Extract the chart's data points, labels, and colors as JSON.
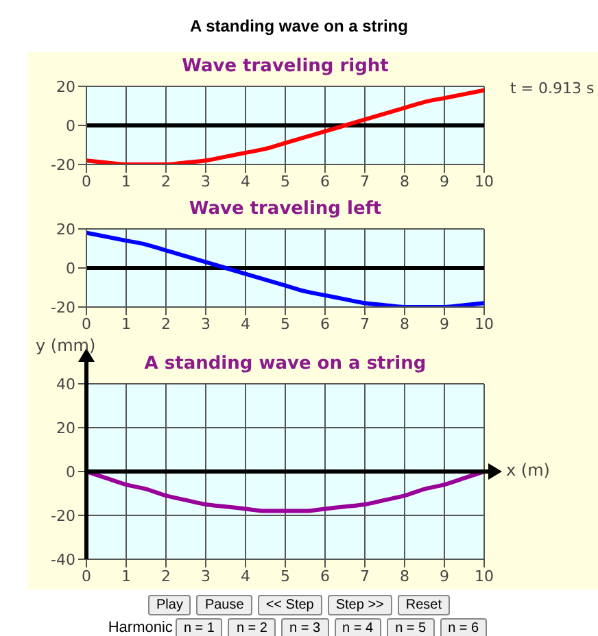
{
  "chart_data": [
    {
      "type": "line",
      "title": "Wave traveling right",
      "x": [
        0,
        0.5,
        1,
        1.5,
        2,
        2.5,
        3,
        3.5,
        4,
        4.5,
        5,
        5.5,
        6,
        6.5,
        7,
        7.5,
        8,
        8.5,
        9,
        9.5,
        10
      ],
      "series": [
        {
          "color": "#ff0000",
          "values": [
            -18,
            -19,
            -20,
            -20,
            -20,
            -19,
            -18,
            -16,
            -14,
            -12,
            -9,
            -6,
            -3,
            0,
            3,
            6,
            9,
            12,
            14,
            16,
            18
          ]
        }
      ],
      "xlim": [
        0,
        10
      ],
      "xticks": [
        0,
        1,
        2,
        3,
        4,
        5,
        6,
        7,
        8,
        9,
        10
      ],
      "ylim": [
        -20,
        20
      ],
      "yticks": [
        -20,
        0,
        20
      ],
      "grid": true,
      "ref_lines": [
        {
          "axis": "y",
          "value": 0,
          "color": "#000000"
        }
      ],
      "annotations": [
        "A standing wave on a string",
        "t = 0.913 s"
      ]
    },
    {
      "type": "line",
      "title": "Wave traveling left",
      "x": [
        0,
        0.5,
        1,
        1.5,
        2,
        2.5,
        3,
        3.5,
        4,
        4.5,
        5,
        5.5,
        6,
        6.5,
        7,
        7.5,
        8,
        8.5,
        9,
        9.5,
        10
      ],
      "series": [
        {
          "color": "#0000ff",
          "values": [
            18,
            16,
            14,
            12,
            9,
            6,
            3,
            0,
            -3,
            -6,
            -9,
            -12,
            -14,
            -16,
            -18,
            -19,
            -20,
            -20,
            -20,
            -19,
            -18
          ]
        }
      ],
      "xlim": [
        0,
        10
      ],
      "xticks": [
        0,
        1,
        2,
        3,
        4,
        5,
        6,
        7,
        8,
        9,
        10
      ],
      "ylim": [
        -20,
        20
      ],
      "yticks": [
        -20,
        0,
        20
      ],
      "grid": true,
      "ref_lines": [
        {
          "axis": "y",
          "value": 0,
          "color": "#000000"
        }
      ]
    },
    {
      "type": "line",
      "title": "A standing wave on a string",
      "xlabel": "x (m)",
      "ylabel": "y (mm)",
      "x": [
        0,
        0.5,
        1,
        1.5,
        2,
        2.5,
        3,
        3.5,
        4,
        4.5,
        5,
        5.5,
        6,
        6.5,
        7,
        7.5,
        8,
        8.5,
        9,
        9.5,
        10
      ],
      "series": [
        {
          "color": "#990099",
          "values": [
            0,
            -3,
            -6,
            -8,
            -11,
            -13,
            -15,
            -16,
            -17,
            -18,
            -18,
            -18,
            -17,
            -16,
            -15,
            -13,
            -11,
            -8,
            -6,
            -3,
            0
          ]
        }
      ],
      "xlim": [
        0,
        10
      ],
      "xticks": [
        0,
        1,
        2,
        3,
        4,
        5,
        6,
        7,
        8,
        9,
        10
      ],
      "ylim": [
        -40,
        40
      ],
      "yticks": [
        -40,
        -20,
        0,
        20,
        40
      ],
      "grid": true,
      "ref_lines": [
        {
          "axis": "y",
          "value": 0,
          "color": "#000000"
        }
      ],
      "annotations": [
        "Play",
        "Pause",
        "<< Step",
        "Step >>",
        "Reset",
        "Harmonic",
        "n = 1",
        "n = 2",
        "n = 3",
        "n = 4",
        "n = 5",
        "n = 6"
      ]
    }
  ]
}
